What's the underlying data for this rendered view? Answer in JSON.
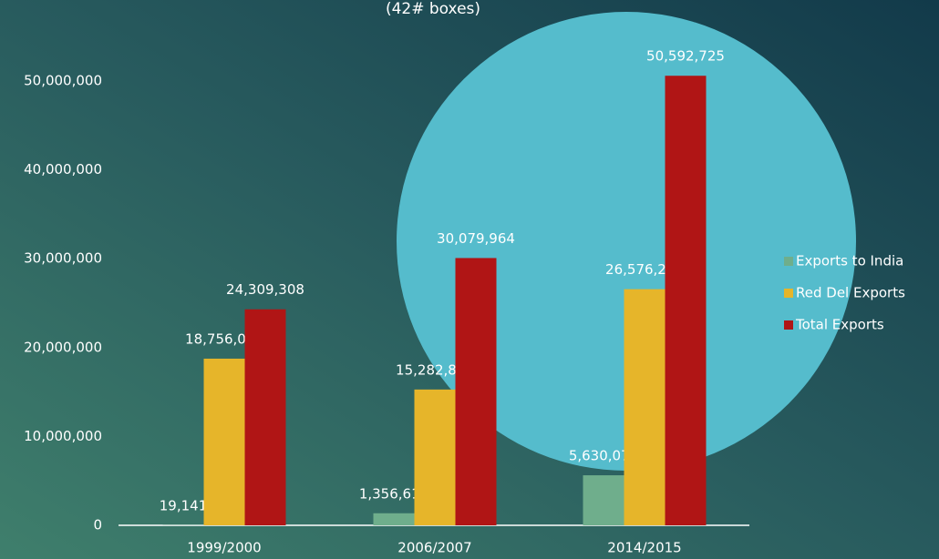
{
  "chart_data": {
    "type": "bar",
    "subtitle": "(42# boxes)",
    "categories": [
      "1999/2000",
      "2006/2007",
      "2014/2015"
    ],
    "series": [
      {
        "name": "Exports to India",
        "color": "#6fae8c",
        "values": [
          19141,
          1356615,
          5630071
        ],
        "value_labels": [
          "19,141",
          "1,356,615",
          "5,630,071"
        ]
      },
      {
        "name": "Red Del Exports",
        "color": "#e6b52a",
        "values": [
          18756023,
          15282808,
          26576244
        ],
        "value_labels": [
          "18,756,023",
          "15,282,808",
          "26,576,244"
        ]
      },
      {
        "name": "Total Exports",
        "color": "#b01515",
        "values": [
          24309308,
          30079964,
          50592725
        ],
        "value_labels": [
          "24,309,308",
          "30,079,964",
          "50,592,725"
        ]
      }
    ],
    "ylim": [
      0,
      50000000
    ],
    "yticks": [
      0,
      {
        "value": 10000000,
        "label": "10,000,000"
      },
      {
        "value": 20000000,
        "label": "20,000,000"
      },
      {
        "value": 30000000,
        "label": "30,000,000"
      },
      {
        "value": 40000000,
        "label": "40,000,000"
      },
      {
        "value": 50000000,
        "label": "50,000,000"
      }
    ],
    "legend": "right"
  }
}
